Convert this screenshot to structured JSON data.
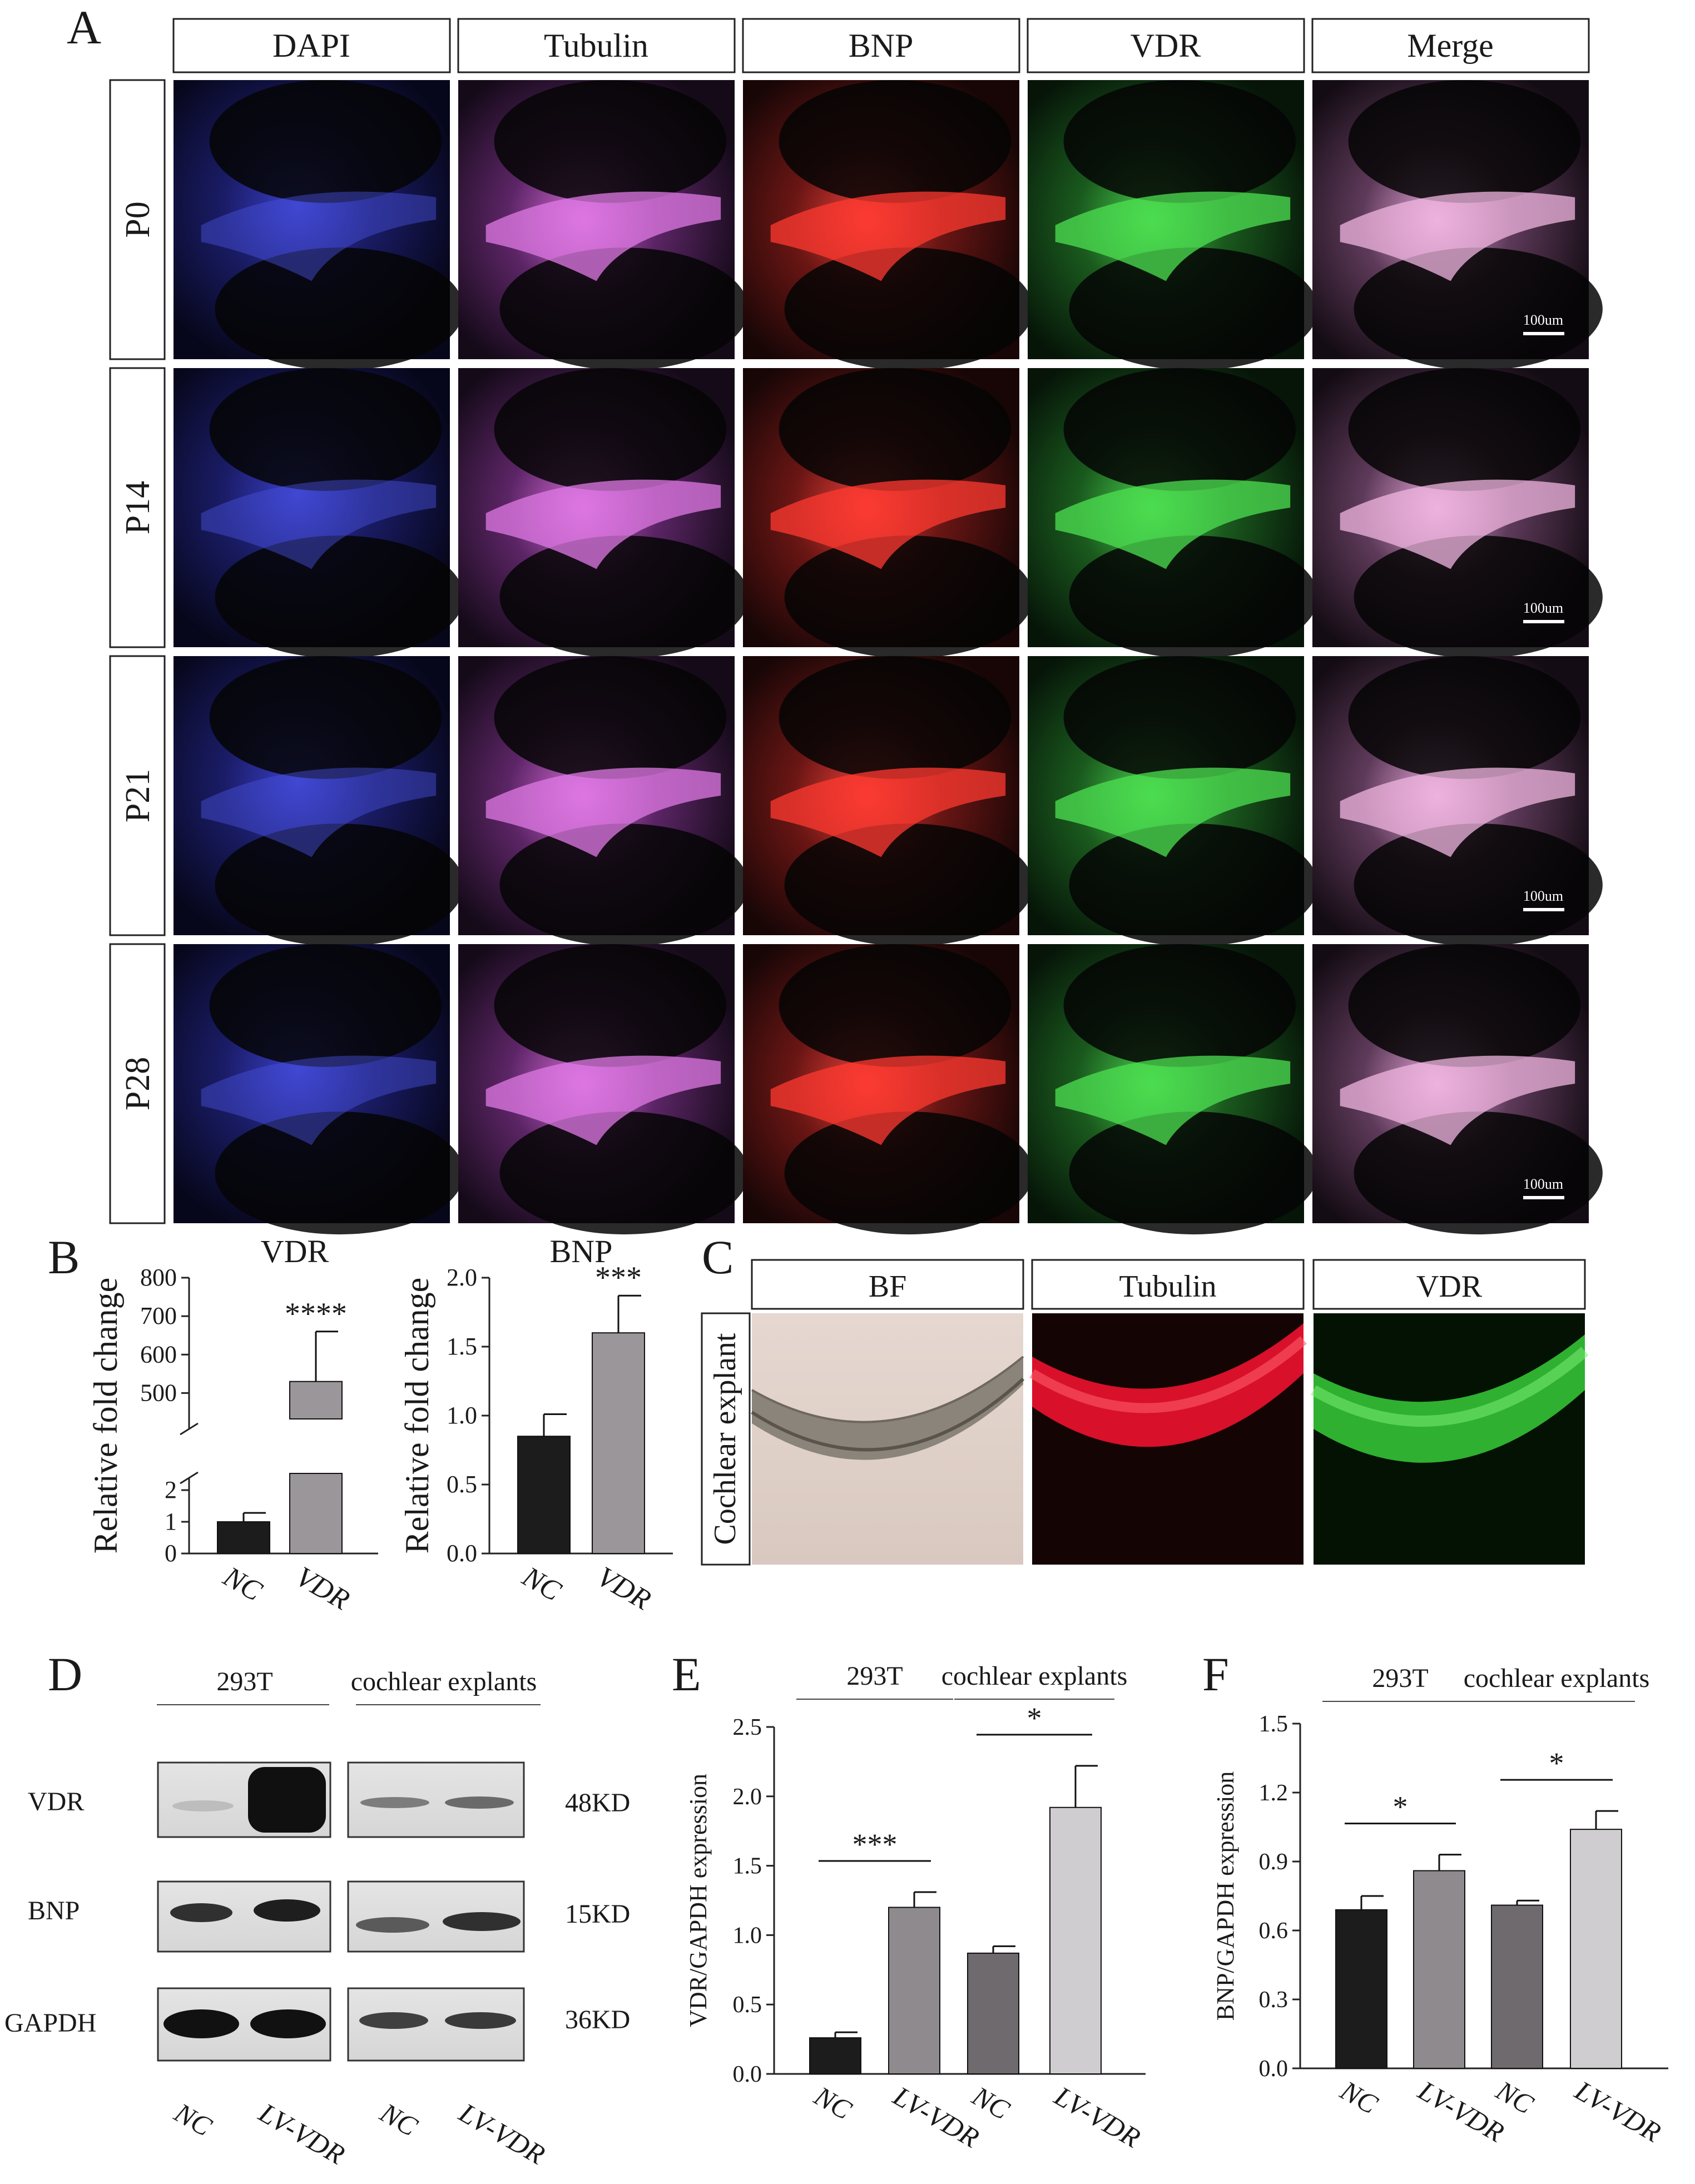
{
  "panel_a": {
    "letter": "A",
    "channels": [
      "DAPI",
      "Tubulin",
      "BNP",
      "VDR",
      "Merge"
    ],
    "rows": [
      "P0",
      "P14",
      "P21",
      "P28"
    ],
    "scale_bar_label": "100um"
  },
  "panel_b": {
    "letter": "B"
  },
  "panel_c": {
    "letter": "C",
    "channels": [
      "BF",
      "Tubulin",
      "VDR"
    ],
    "row_label": "Cochlear explant"
  },
  "panel_d": {
    "letter": "D",
    "group_labels": [
      "293T",
      "cochlear explants"
    ],
    "proteins": [
      {
        "name": "VDR",
        "size": "48KD"
      },
      {
        "name": "BNP",
        "size": "15KD"
      },
      {
        "name": "GAPDH",
        "size": "36KD"
      }
    ],
    "lanes": [
      "NC",
      "LV-VDR",
      "NC",
      "LV-VDR"
    ]
  },
  "panel_e": {
    "letter": "E"
  },
  "panel_f": {
    "letter": "F"
  },
  "chart_data": [
    {
      "type": "bar",
      "title": "VDR",
      "ylabel": "Relative fold change",
      "categories": [
        "NC",
        "VDR"
      ],
      "values": [
        1,
        530
      ],
      "errors": [
        0.28,
        130
      ],
      "axis_break": true,
      "lower_ticks": [
        "0",
        "1",
        "2"
      ],
      "upper_ticks": [
        "500",
        "600",
        "700",
        "800"
      ],
      "ylim_lower": [
        0,
        2
      ],
      "ylim_upper": [
        450,
        800
      ],
      "significance": "****",
      "bar_colors": [
        "#1c1c1c",
        "#9a969a"
      ]
    },
    {
      "type": "bar",
      "title": "BNP",
      "ylabel": "Relative fold change",
      "categories": [
        "NC",
        "VDR"
      ],
      "values": [
        0.85,
        1.6
      ],
      "errors": [
        0.16,
        0.27
      ],
      "ylim": [
        0,
        2.0
      ],
      "yticks": [
        "0.0",
        "0.5",
        "1.0",
        "1.5",
        "2.0"
      ],
      "significance": "***",
      "bar_colors": [
        "#1c1c1c",
        "#9a969a"
      ]
    },
    {
      "type": "bar",
      "ylabel": "VDR/GAPDH expression",
      "group_labels": [
        "293T",
        "cochlear explants"
      ],
      "categories": [
        "NC",
        "LV-VDR",
        "NC",
        "LV-VDR"
      ],
      "values": [
        0.26,
        1.2,
        0.87,
        1.92
      ],
      "errors": [
        0.04,
        0.11,
        0.05,
        0.3
      ],
      "ylim": [
        0,
        2.5
      ],
      "yticks": [
        "0.0",
        "0.5",
        "1.0",
        "1.5",
        "2.0",
        "2.5"
      ],
      "significance": [
        "***",
        "*"
      ],
      "bar_colors": [
        "#1c1c1c",
        "#8e8a8e",
        "#6e6a6e",
        "#cfcdcf"
      ]
    },
    {
      "type": "bar",
      "ylabel": "BNP/GAPDH expression",
      "group_labels": [
        "293T",
        "cochlear explants"
      ],
      "categories": [
        "NC",
        "LV-VDR",
        "NC",
        "LV-VDR"
      ],
      "values": [
        0.69,
        0.86,
        0.71,
        1.04
      ],
      "errors": [
        0.06,
        0.07,
        0.02,
        0.08
      ],
      "ylim": [
        0,
        1.5
      ],
      "yticks": [
        "0.0",
        "0.3",
        "0.6",
        "0.9",
        "1.2",
        "1.5"
      ],
      "significance": [
        "*",
        "*"
      ],
      "bar_colors": [
        "#1c1c1c",
        "#8e8a8e",
        "#6e6a6e",
        "#cfcdcf"
      ]
    }
  ]
}
